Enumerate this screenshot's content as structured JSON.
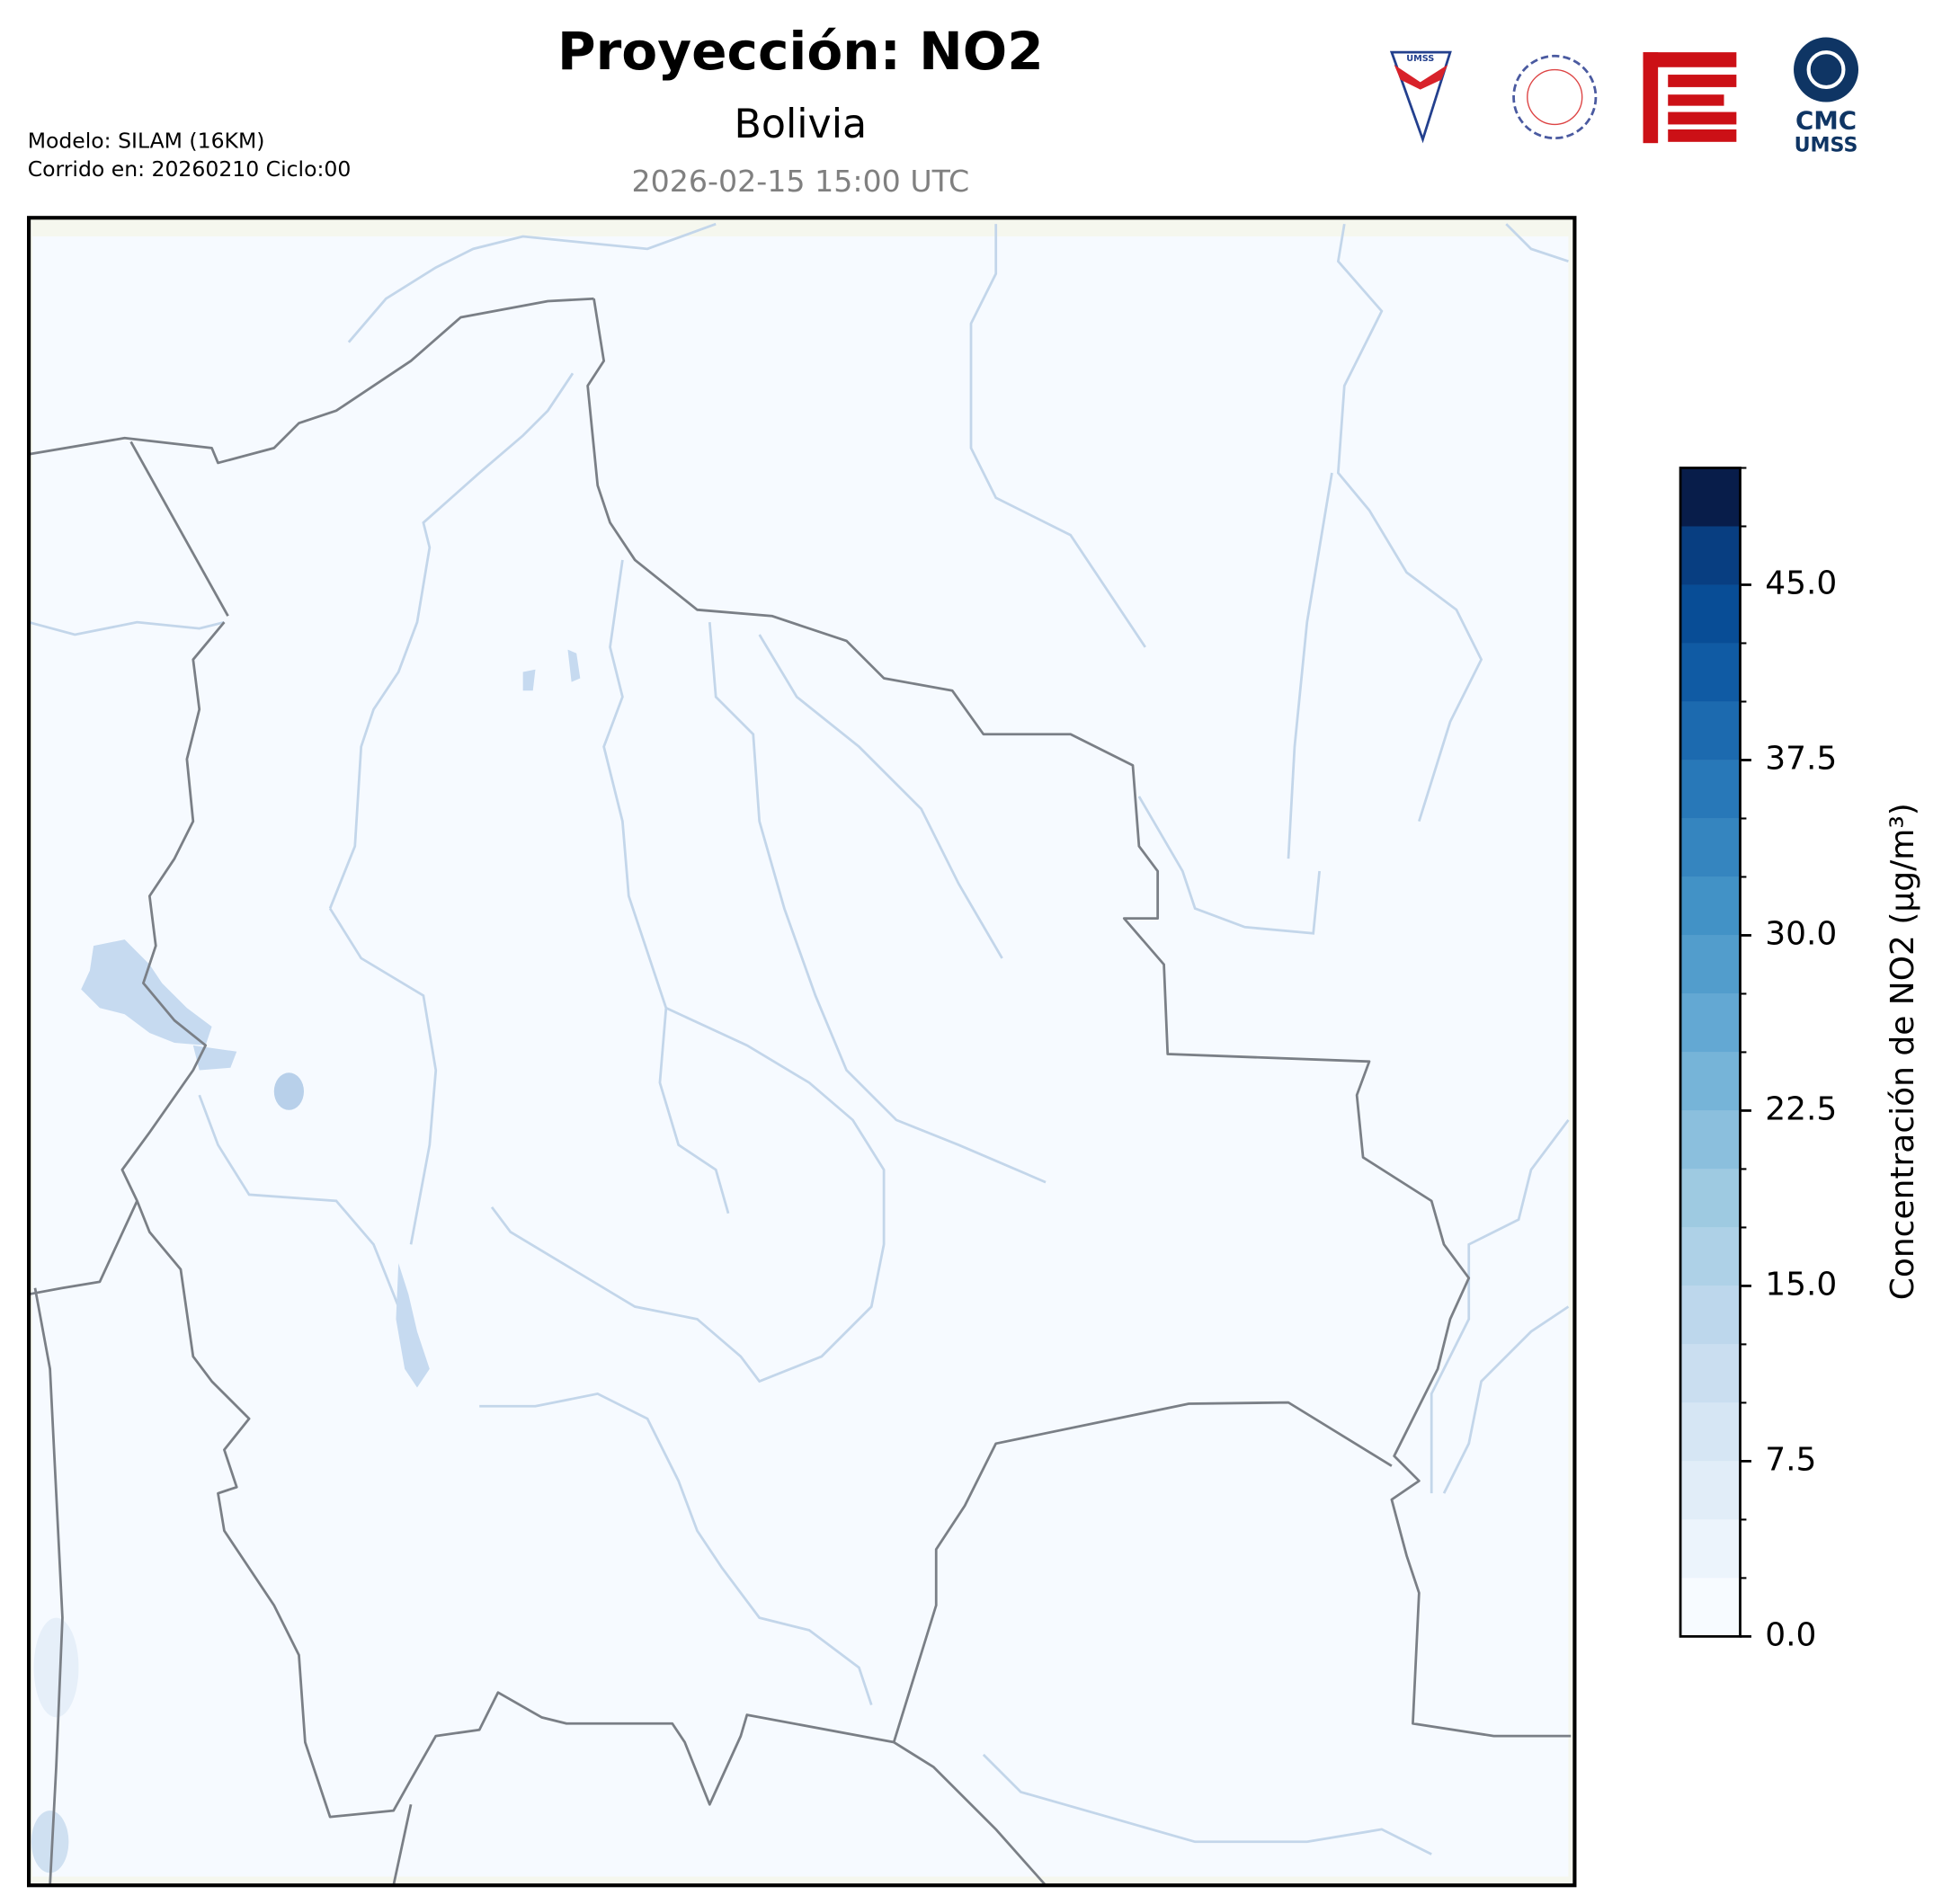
{
  "header": {
    "title": "Proyección: NO2",
    "subtitle": "Bolivia",
    "timestamp": "2026-02-15 15:00 UTC",
    "model": "Modelo: SILAM (16KM)",
    "run": "Corrido en: 20260210 Ciclo:00"
  },
  "logos": {
    "umss": "UMSS",
    "cmc": "CMC",
    "cmc_sub": "UMSS"
  },
  "colorbar": {
    "label": "Concentración de NO2 (µg/m³)",
    "lim": [
      0,
      50
    ],
    "ticks": [
      {
        "value": 0,
        "label": "0.0"
      },
      7.5,
      {
        "value": 15,
        "label": "15.0"
      },
      22.5,
      {
        "value": 30,
        "label": "30.0"
      },
      37.5,
      {
        "value": 45,
        "label": "45.0"
      }
    ],
    "levels": [
      0,
      2.5,
      5,
      7.5,
      10,
      12.5,
      15,
      17.5,
      20,
      22.5,
      25,
      27.5,
      30,
      32.5,
      35,
      37.5,
      40,
      42.5,
      45,
      47.5,
      50
    ],
    "colors": [
      "#f7fbff",
      "#ecf4fc",
      "#e1edf8",
      "#d6e6f4",
      "#cadef0",
      "#bdd7ec",
      "#aed1e7",
      "#9ecae1",
      "#8bbfdd",
      "#76b4d8",
      "#63a8d3",
      "#529dcc",
      "#4292c6",
      "#3585bf",
      "#2878b8",
      "#1c6aaf",
      "#105ba4",
      "#084d96",
      "#083e81",
      "#081d4a"
    ]
  }
}
